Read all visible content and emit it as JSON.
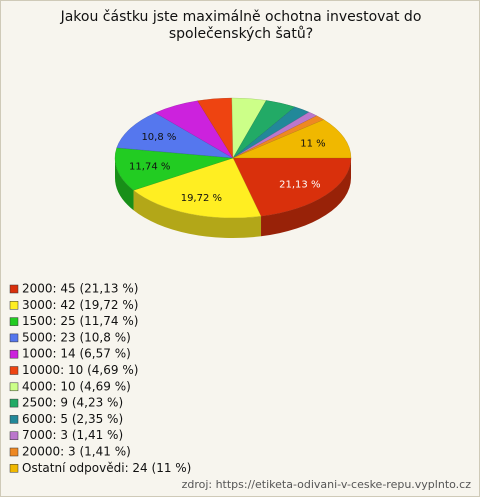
{
  "chart_data": {
    "type": "pie3d",
    "title": "Jakou částku jste maximálně ochotna investovat do společenských šatů?",
    "categories": [
      "2000: 45 (21,13 %)",
      "3000: 42 (19,72 %)",
      "1500: 25 (11,74 %)",
      "5000: 23 (10,8 %)",
      "1000: 14 (6,57 %)",
      "10000: 10 (4,69 %)",
      "4000: 10 (4,69 %)",
      "2500: 9 (4,23 %)",
      "6000: 5 (2,35 %)",
      "7000: 3 (1,41 %)",
      "20000: 3 (1,41 %)",
      "Ostatní odpovědi: 24 (11 %)"
    ],
    "values": [
      21.13,
      19.72,
      11.74,
      10.8,
      6.57,
      4.69,
      4.69,
      4.23,
      2.35,
      1.41,
      1.41,
      11
    ],
    "value_labels": [
      "21,13 %",
      "19,72 %",
      "11,74 %",
      "10,8 %",
      null,
      null,
      null,
      null,
      null,
      null,
      null,
      "11 %"
    ],
    "colors": [
      "#d9300c",
      "#ffee22",
      "#22cc22",
      "#5577ee",
      "#cc22dd",
      "#ee4411",
      "#ccff88",
      "#22aa66",
      "#228899",
      "#bb77cc",
      "#ee8822",
      "#f0b800"
    ],
    "source": "zdroj: https://etiketa-odivani-v-ceske-repu.vyplnto.cz"
  }
}
